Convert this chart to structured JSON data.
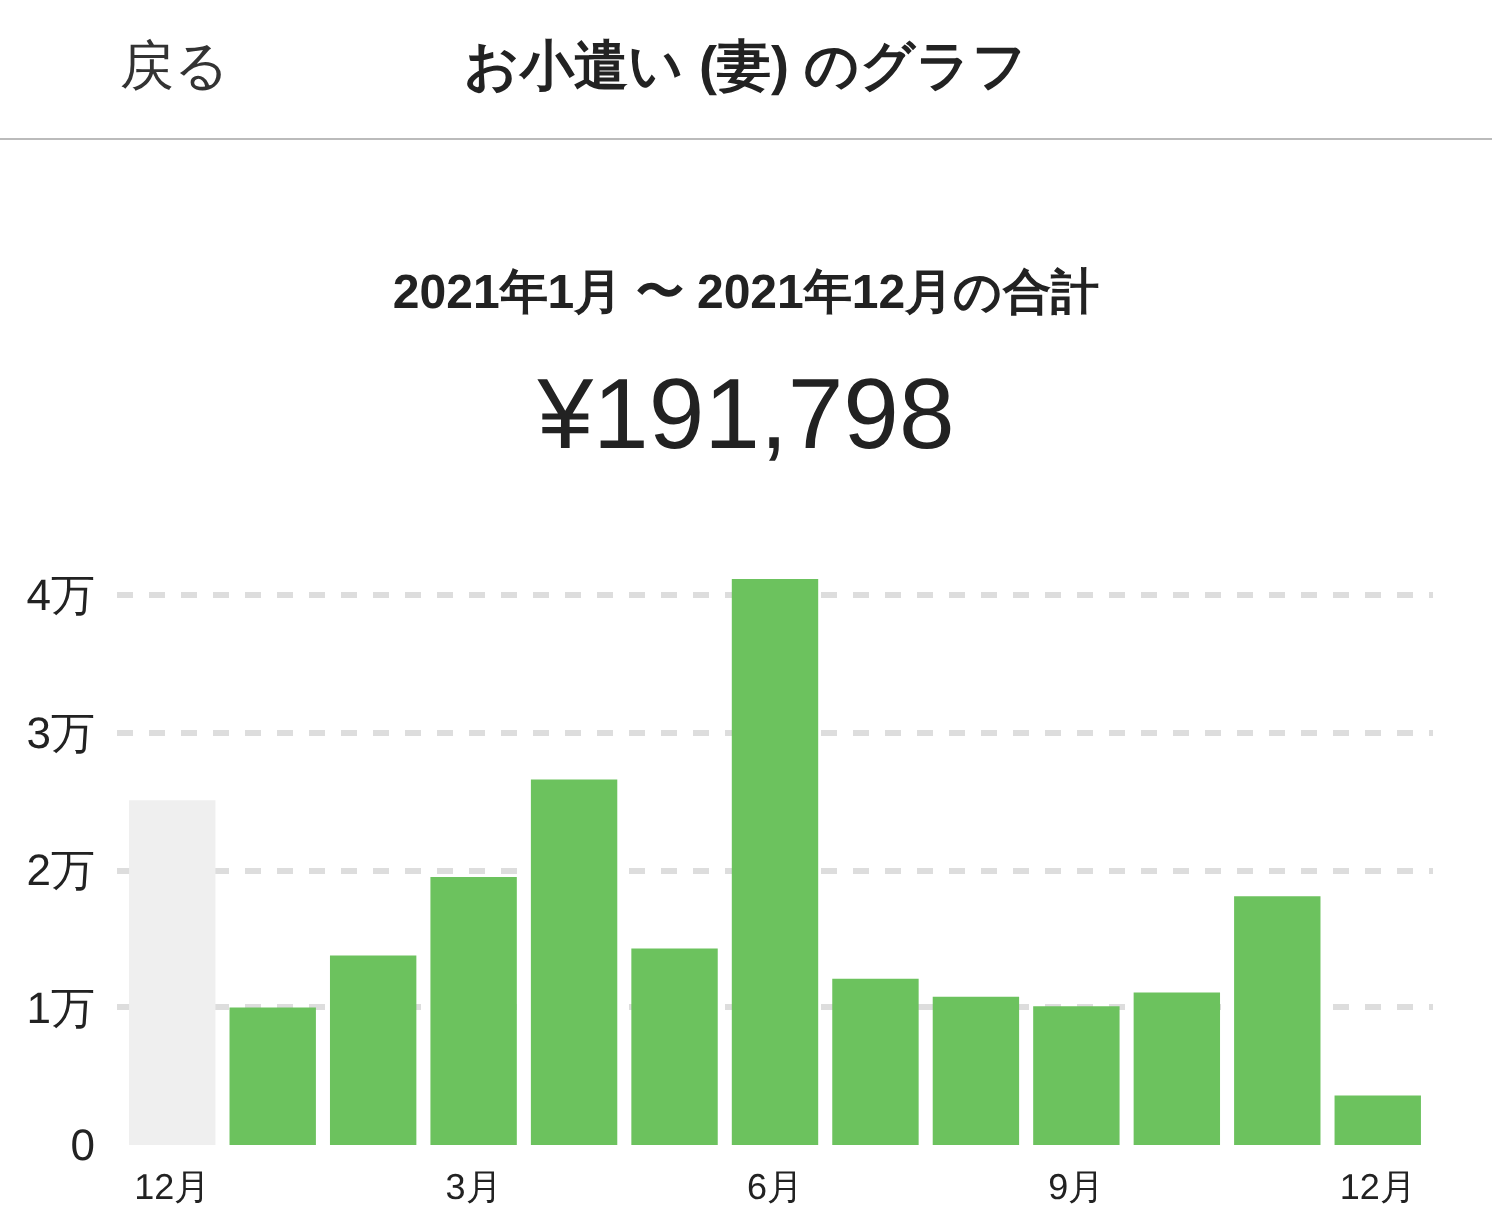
{
  "chart_data": {
    "type": "bar",
    "title": "お小遣い (妻) のグラフ",
    "subtitle": "2021年1月 〜 2021年12月の合計",
    "annotations": [
      "戻る",
      "¥191,798"
    ],
    "categories": [
      "12月",
      null,
      null,
      "3月",
      null,
      null,
      "6月",
      null,
      null,
      "9月",
      null,
      null,
      "12月"
    ],
    "values": [
      2.51,
      1.0,
      1.38,
      1.95,
      2.66,
      1.43,
      4.12,
      1.21,
      1.08,
      1.01,
      1.11,
      1.81,
      0.36
    ],
    "colors": [
      "#efefef",
      "#6cc25e",
      "#6cc25e",
      "#6cc25e",
      "#6cc25e",
      "#6cc25e",
      "#6cc25e",
      "#6cc25e",
      "#6cc25e",
      "#6cc25e",
      "#6cc25e",
      "#6cc25e",
      "#6cc25e"
    ],
    "ylim": [
      0,
      4.12
    ],
    "yticks": [
      0,
      {
        "value": 1,
        "label": "1万"
      },
      {
        "value": 2,
        "label": "2万"
      },
      {
        "value": 3,
        "label": "3万"
      },
      {
        "value": 4,
        "label": "4万"
      }
    ],
    "grid": "y"
  }
}
